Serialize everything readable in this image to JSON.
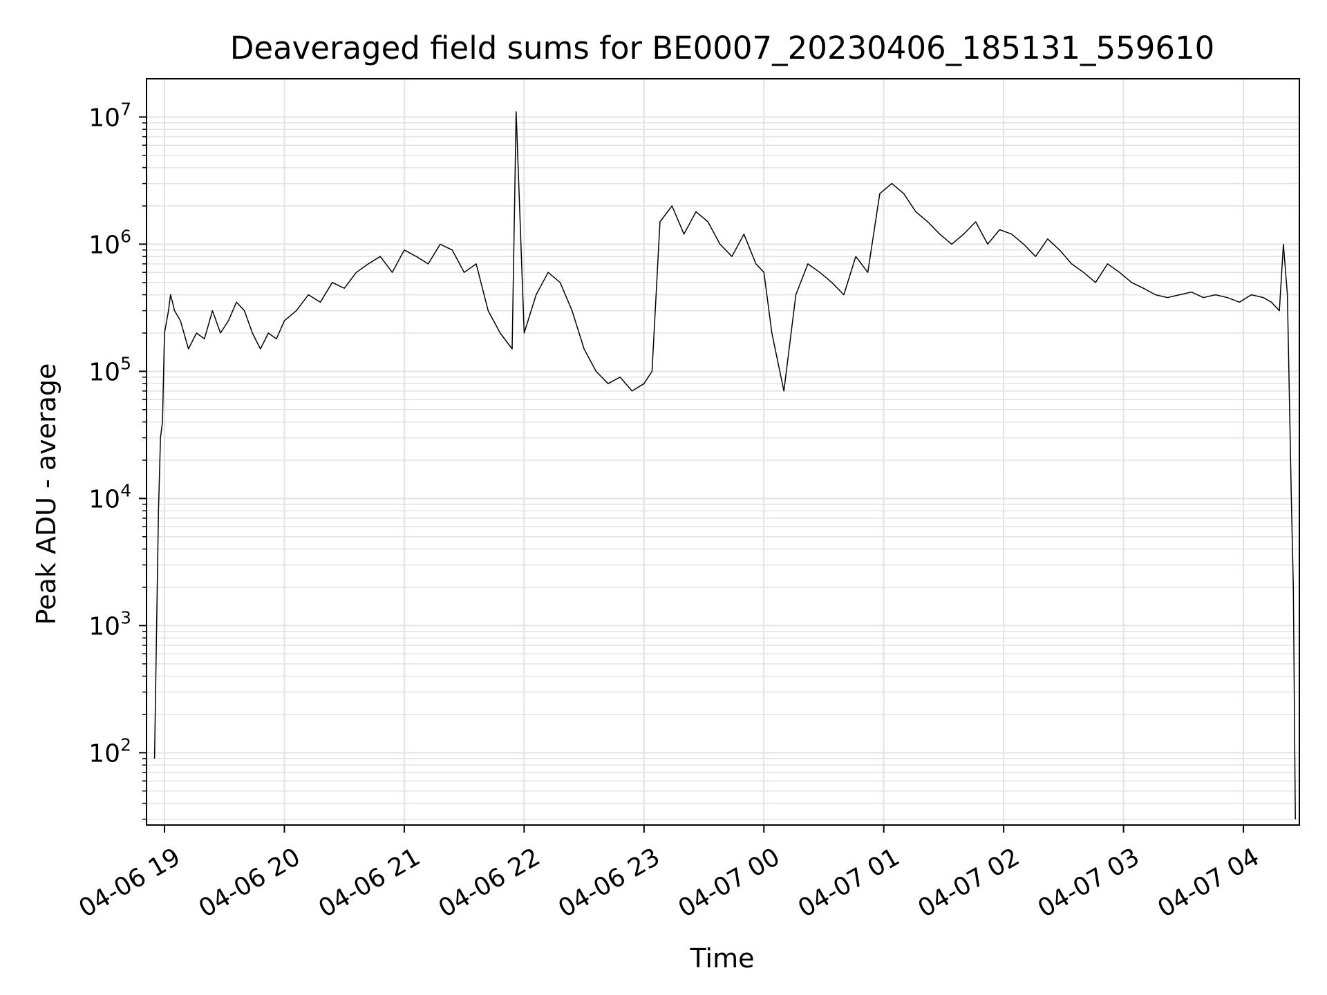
{
  "chart_data": {
    "type": "line",
    "title": "Deaveraged field sums for BE0007_20230406_185131_559610",
    "xlabel": "Time",
    "ylabel": "Peak ADU - average",
    "x_axis_type": "datetime",
    "y_scale": "log",
    "xlim": [
      "2023-04-06T18:51",
      "2023-04-07T04:28"
    ],
    "ylim": [
      27,
      20000000
    ],
    "grid": "major and minor",
    "line_color": "#000000",
    "grid_color": "#e3e3e3",
    "x_ticks": [
      {
        "t": "2023-04-06T19:00",
        "label": "04-06 19"
      },
      {
        "t": "2023-04-06T20:00",
        "label": "04-06 20"
      },
      {
        "t": "2023-04-06T21:00",
        "label": "04-06 21"
      },
      {
        "t": "2023-04-06T22:00",
        "label": "04-06 22"
      },
      {
        "t": "2023-04-06T23:00",
        "label": "04-06 23"
      },
      {
        "t": "2023-04-07T00:00",
        "label": "04-07 00"
      },
      {
        "t": "2023-04-07T01:00",
        "label": "04-07 01"
      },
      {
        "t": "2023-04-07T02:00",
        "label": "04-07 02"
      },
      {
        "t": "2023-04-07T03:00",
        "label": "04-07 03"
      },
      {
        "t": "2023-04-07T04:00",
        "label": "04-07 04"
      }
    ],
    "y_ticks": [
      {
        "value": 100,
        "base": "10",
        "exp": "2"
      },
      {
        "value": 1000,
        "base": "10",
        "exp": "3"
      },
      {
        "value": 10000,
        "base": "10",
        "exp": "4"
      },
      {
        "value": 100000,
        "base": "10",
        "exp": "5"
      },
      {
        "value": 1000000,
        "base": "10",
        "exp": "6"
      },
      {
        "value": 10000000,
        "base": "10",
        "exp": "7"
      }
    ],
    "series": [
      {
        "x": [
          "2023-04-06T18:55",
          "2023-04-06T18:56",
          "2023-04-06T18:57",
          "2023-04-06T18:58",
          "2023-04-06T18:59",
          "2023-04-06T19:00",
          "2023-04-06T19:02",
          "2023-04-06T19:03",
          "2023-04-06T19:04",
          "2023-04-06T19:05",
          "2023-04-06T19:08",
          "2023-04-06T19:12",
          "2023-04-06T19:16",
          "2023-04-06T19:20",
          "2023-04-06T19:24",
          "2023-04-06T19:28",
          "2023-04-06T19:32",
          "2023-04-06T19:36",
          "2023-04-06T19:40",
          "2023-04-06T19:44",
          "2023-04-06T19:48",
          "2023-04-06T19:52",
          "2023-04-06T19:56",
          "2023-04-06T20:00",
          "2023-04-06T20:06",
          "2023-04-06T20:12",
          "2023-04-06T20:18",
          "2023-04-06T20:24",
          "2023-04-06T20:30",
          "2023-04-06T20:36",
          "2023-04-06T20:42",
          "2023-04-06T20:48",
          "2023-04-06T20:54",
          "2023-04-06T21:00",
          "2023-04-06T21:06",
          "2023-04-06T21:12",
          "2023-04-06T21:18",
          "2023-04-06T21:24",
          "2023-04-06T21:30",
          "2023-04-06T21:36",
          "2023-04-06T21:42",
          "2023-04-06T21:48",
          "2023-04-06T21:54",
          "2023-04-06T21:56",
          "2023-04-06T22:00",
          "2023-04-06T22:06",
          "2023-04-06T22:12",
          "2023-04-06T22:18",
          "2023-04-06T22:24",
          "2023-04-06T22:30",
          "2023-04-06T22:36",
          "2023-04-06T22:42",
          "2023-04-06T22:48",
          "2023-04-06T22:54",
          "2023-04-06T23:00",
          "2023-04-06T23:04",
          "2023-04-06T23:08",
          "2023-04-06T23:14",
          "2023-04-06T23:20",
          "2023-04-06T23:26",
          "2023-04-06T23:32",
          "2023-04-06T23:38",
          "2023-04-06T23:44",
          "2023-04-06T23:50",
          "2023-04-06T23:56",
          "2023-04-07T00:00",
          "2023-04-07T00:04",
          "2023-04-07T00:10",
          "2023-04-07T00:16",
          "2023-04-07T00:22",
          "2023-04-07T00:28",
          "2023-04-07T00:34",
          "2023-04-07T00:40",
          "2023-04-07T00:46",
          "2023-04-07T00:52",
          "2023-04-07T00:58",
          "2023-04-07T01:04",
          "2023-04-07T01:10",
          "2023-04-07T01:16",
          "2023-04-07T01:22",
          "2023-04-07T01:28",
          "2023-04-07T01:34",
          "2023-04-07T01:40",
          "2023-04-07T01:46",
          "2023-04-07T01:52",
          "2023-04-07T01:58",
          "2023-04-07T02:04",
          "2023-04-07T02:10",
          "2023-04-07T02:16",
          "2023-04-07T02:22",
          "2023-04-07T02:28",
          "2023-04-07T02:34",
          "2023-04-07T02:40",
          "2023-04-07T02:46",
          "2023-04-07T02:52",
          "2023-04-07T02:58",
          "2023-04-07T03:04",
          "2023-04-07T03:10",
          "2023-04-07T03:16",
          "2023-04-07T03:22",
          "2023-04-07T03:28",
          "2023-04-07T03:34",
          "2023-04-07T03:40",
          "2023-04-07T03:46",
          "2023-04-07T03:52",
          "2023-04-07T03:58",
          "2023-04-07T04:04",
          "2023-04-07T04:10",
          "2023-04-07T04:14",
          "2023-04-07T04:18",
          "2023-04-07T04:20",
          "2023-04-07T04:22",
          "2023-04-07T04:24",
          "2023-04-07T04:25",
          "2023-04-07T04:26"
        ],
        "y": [
          90,
          900,
          8000,
          30000,
          40000,
          200000,
          300000,
          400000,
          350000,
          300000,
          250000,
          150000,
          200000,
          180000,
          300000,
          200000,
          250000,
          350000,
          300000,
          200000,
          150000,
          200000,
          180000,
          250000,
          300000,
          400000,
          350000,
          500000,
          450000,
          600000,
          700000,
          800000,
          600000,
          900000,
          800000,
          700000,
          1000000,
          900000,
          600000,
          700000,
          300000,
          200000,
          150000,
          11000000,
          200000,
          400000,
          600000,
          500000,
          300000,
          150000,
          100000,
          80000,
          90000,
          70000,
          80000,
          100000,
          1500000,
          2000000,
          1200000,
          1800000,
          1500000,
          1000000,
          800000,
          1200000,
          700000,
          600000,
          200000,
          70000,
          400000,
          700000,
          600000,
          500000,
          400000,
          800000,
          600000,
          2500000,
          3000000,
          2500000,
          1800000,
          1500000,
          1200000,
          1000000,
          1200000,
          1500000,
          1000000,
          1300000,
          1200000,
          1000000,
          800000,
          1100000,
          900000,
          700000,
          600000,
          500000,
          700000,
          600000,
          500000,
          450000,
          400000,
          380000,
          400000,
          420000,
          380000,
          400000,
          380000,
          350000,
          400000,
          380000,
          350000,
          300000,
          1000000,
          400000,
          10000,
          2000,
          30
        ]
      }
    ]
  }
}
